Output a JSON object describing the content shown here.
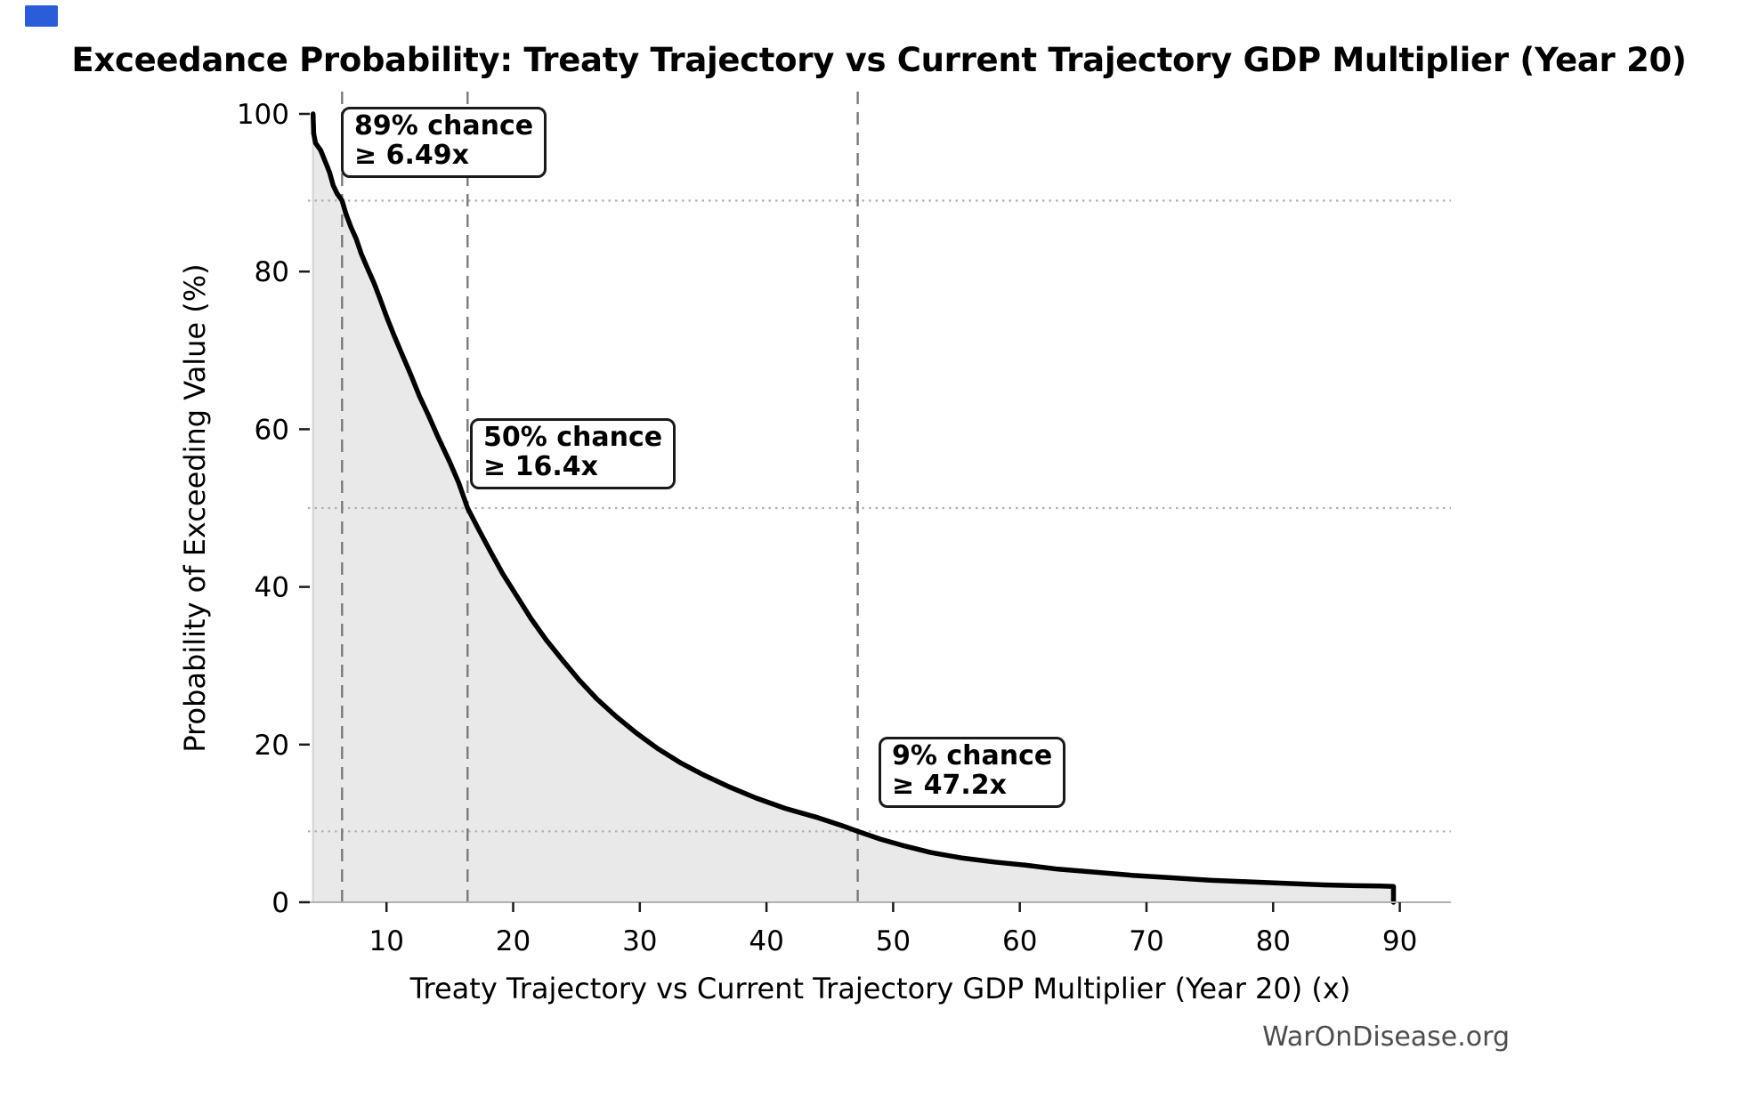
{
  "title": "Exceedance Probability: Treaty Trajectory vs Current Trajectory GDP Multiplier (Year 20)",
  "watermark": "WarOnDisease.org",
  "chart_data": {
    "type": "area",
    "title": "Exceedance Probability: Treaty Trajectory vs Current Trajectory GDP Multiplier (Year 20)",
    "xlabel": "Treaty Trajectory vs Current Trajectory GDP Multiplier (Year 20) (x)",
    "ylabel": "Probability of Exceeding Value (%)",
    "xlim": [
      4,
      94
    ],
    "ylim": [
      0,
      100
    ],
    "x_ticks": [
      10,
      20,
      30,
      40,
      50,
      60,
      70,
      80,
      90
    ],
    "y_ticks": [
      0,
      20,
      40,
      60,
      80,
      100
    ],
    "grid": "off",
    "legend": "none",
    "series": [
      {
        "name": "exceedance-probability-curve",
        "x": [
          4.2,
          4.25,
          4.4,
          4.8,
          5.1,
          5.5,
          5.8,
          6.1,
          6.49,
          6.8,
          7.2,
          7.6,
          8.0,
          8.5,
          9.0,
          9.5,
          10.0,
          10.6,
          11.2,
          11.9,
          12.6,
          13.3,
          14.1,
          15.0,
          15.7,
          16.4,
          17.3,
          18.2,
          19.2,
          20.3,
          21.4,
          22.6,
          23.9,
          25.2,
          26.6,
          28.1,
          29.7,
          31.4,
          33.2,
          35.1,
          37.1,
          39.2,
          41.5,
          43.9,
          46.0,
          47.2,
          49.0,
          51.0,
          53.0,
          55.5,
          58.0,
          60.5,
          63.0,
          66.0,
          69.0,
          72.0,
          75.0,
          78.0,
          81.0,
          84.0,
          86.5,
          88.5,
          89.5,
          89.5
        ],
        "y": [
          100,
          97.5,
          96.3,
          95.4,
          94.2,
          92.6,
          90.9,
          89.9,
          89.0,
          87.3,
          85.6,
          84.2,
          82.3,
          80.4,
          78.6,
          76.5,
          74.3,
          71.9,
          69.6,
          67.0,
          64.2,
          61.8,
          58.9,
          55.8,
          53.2,
          50.0,
          47.2,
          44.5,
          41.6,
          38.8,
          36.0,
          33.3,
          30.7,
          28.2,
          25.8,
          23.6,
          21.5,
          19.5,
          17.7,
          16.1,
          14.6,
          13.2,
          11.9,
          10.8,
          9.7,
          9.0,
          8.0,
          7.1,
          6.3,
          5.6,
          5.1,
          4.7,
          4.2,
          3.8,
          3.4,
          3.1,
          2.8,
          2.6,
          2.4,
          2.2,
          2.1,
          2.05,
          2.0,
          0
        ]
      }
    ],
    "reference_lines": {
      "vertical_dashed_x": [
        6.49,
        16.4,
        47.2
      ],
      "horizontal_dotted_y_pct": [
        89,
        50,
        9
      ]
    }
  },
  "annotations": [
    {
      "line1": "89% chance",
      "line2": "≥ 6.49x",
      "x": 6.49,
      "probability_pct": 89
    },
    {
      "line1": "50% chance",
      "line2": "≥ 16.4x",
      "x": 16.4,
      "probability_pct": 50
    },
    {
      "line1": "9% chance",
      "line2": "≥ 47.2x",
      "x": 47.2,
      "probability_pct": 9
    }
  ],
  "colors": {
    "background": "#ffffff",
    "curve": "#000000",
    "area_fill": "#e9e9e9",
    "area_edge": "#d4d4d4",
    "dashed_marker": "#7a7a7a",
    "dotted_grid": "#b0b0b0",
    "axis_spine": "#b0b0b0",
    "tick_mark": "#1a1a1a",
    "watermark_text": "#4d4d4d",
    "corner_marker_blue": "#2b5cd9"
  }
}
